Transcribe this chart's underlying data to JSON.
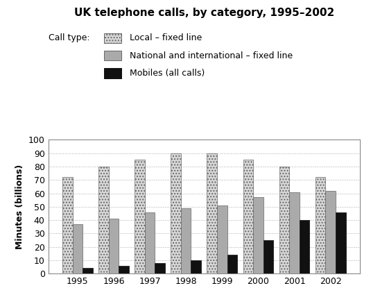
{
  "title": "UK telephone calls, by category, 1995–2002",
  "ylabel": "Minutes (billions)",
  "years": [
    1995,
    1996,
    1997,
    1998,
    1999,
    2000,
    2001,
    2002
  ],
  "local_fixed": [
    72,
    80,
    85,
    90,
    90,
    85,
    80,
    72
  ],
  "national_fixed": [
    37,
    41,
    46,
    49,
    51,
    57,
    61,
    62
  ],
  "mobiles": [
    4,
    6,
    8,
    10,
    14,
    25,
    40,
    46
  ],
  "ylim": [
    0,
    100
  ],
  "yticks": [
    0,
    10,
    20,
    30,
    40,
    50,
    60,
    70,
    80,
    90,
    100
  ],
  "legend_label_local": "Local – fixed line",
  "legend_label_national": "National and international – fixed line",
  "legend_label_mobile": "Mobiles (all calls)",
  "legend_prefix": "Call type:",
  "bar_width": 0.28,
  "background_color": "#ffffff"
}
